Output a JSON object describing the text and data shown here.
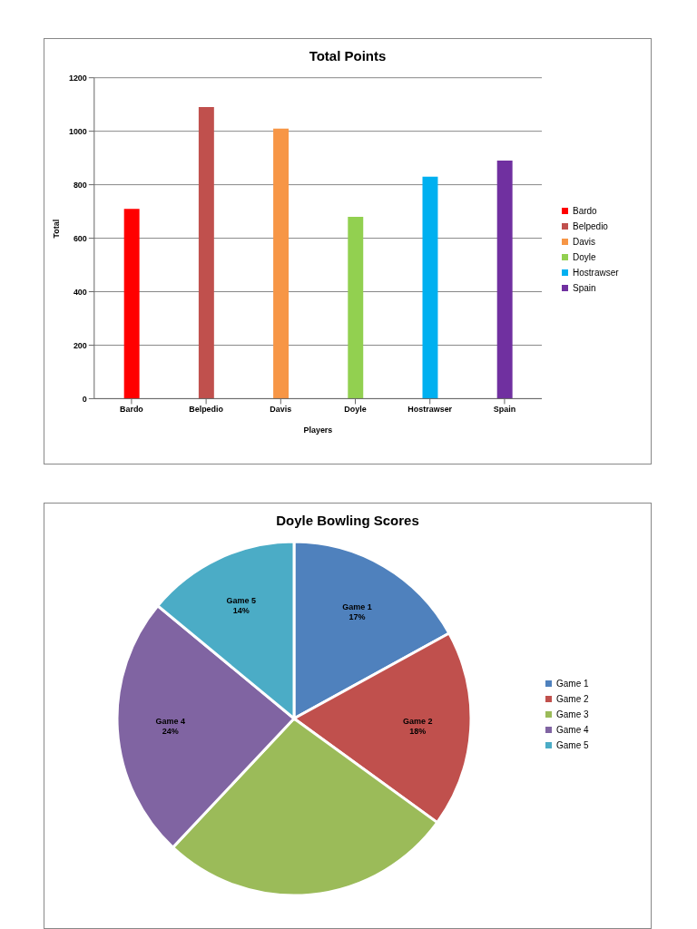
{
  "chart_data": [
    {
      "type": "bar",
      "title": "Total Points",
      "xlabel": "Players",
      "ylabel": "Total",
      "categories": [
        "Bardo",
        "Belpedio",
        "Davis",
        "Doyle",
        "Hostrawser",
        "Spain"
      ],
      "stacked": true,
      "series": [
        {
          "name": "Bardo",
          "color": "#ff0000",
          "values": [
            710,
            null,
            null,
            null,
            null,
            null
          ]
        },
        {
          "name": "Belpedio",
          "color": "#c0504d",
          "values": [
            null,
            1090,
            null,
            null,
            null,
            null
          ]
        },
        {
          "name": "Davis",
          "color": "#f79646",
          "values": [
            null,
            null,
            1010,
            null,
            null,
            null
          ]
        },
        {
          "name": "Doyle",
          "color": "#92d050",
          "values": [
            null,
            null,
            null,
            680,
            null,
            null
          ]
        },
        {
          "name": "Hostrawser",
          "color": "#00b0f0",
          "values": [
            null,
            null,
            null,
            null,
            830,
            null
          ]
        },
        {
          "name": "Spain",
          "color": "#7030a0",
          "values": [
            null,
            null,
            null,
            null,
            null,
            890
          ]
        }
      ],
      "ylim": [
        0,
        1200
      ],
      "yticks": [
        0,
        200,
        400,
        600,
        800,
        1000,
        1200
      ],
      "grid": "y",
      "legend": "right"
    },
    {
      "type": "pie",
      "title": "Doyle Bowling Scores",
      "categories": [
        "Game 1",
        "Game 2",
        "Game 3",
        "Game 4",
        "Game 5"
      ],
      "values": [
        17,
        18,
        27,
        24,
        14
      ],
      "value_labels": [
        "17%",
        "18%",
        null,
        "24%",
        "14%"
      ],
      "colors": [
        "#4f81bd",
        "#c0504d",
        "#9bbb59",
        "#8064a2",
        "#4bacc6"
      ],
      "legend": "right"
    }
  ]
}
